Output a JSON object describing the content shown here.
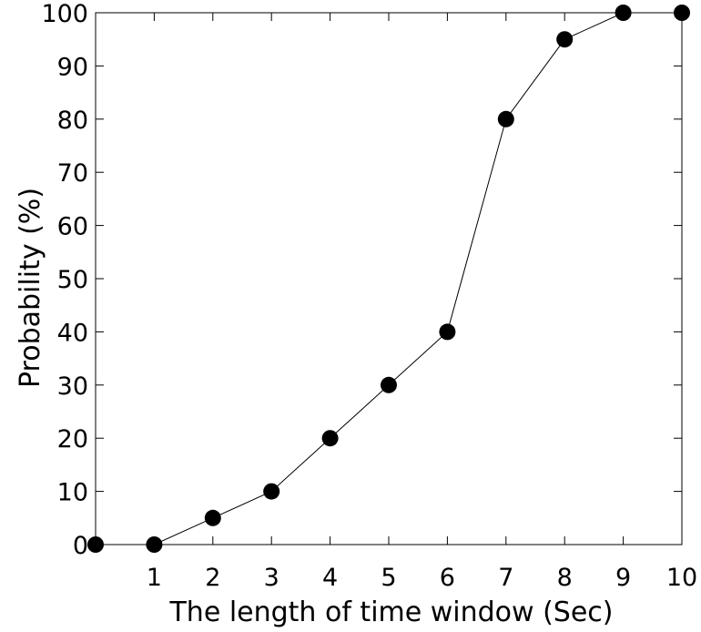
{
  "chart_data": {
    "type": "line",
    "title": "",
    "xlabel": "The length of time window (Sec)",
    "ylabel": "Probability (%)",
    "xlim": [
      0,
      10
    ],
    "ylim": [
      0,
      100
    ],
    "x_ticks": [
      "",
      "1",
      "2",
      "3",
      "4",
      "5",
      "6",
      "7",
      "8",
      "9",
      "10"
    ],
    "y_ticks": [
      "0",
      "10",
      "20",
      "30",
      "40",
      "50",
      "60",
      "70",
      "80",
      "90",
      "100"
    ],
    "grid": false,
    "legend": "none",
    "series": [
      {
        "x": [
          0,
          1,
          2,
          3,
          4,
          5,
          6,
          7,
          8,
          9,
          10
        ],
        "values": [
          0,
          0,
          5,
          10,
          20,
          30,
          40,
          80,
          95,
          100,
          100
        ],
        "color": "#000000",
        "marker": "filled-circle"
      }
    ]
  }
}
